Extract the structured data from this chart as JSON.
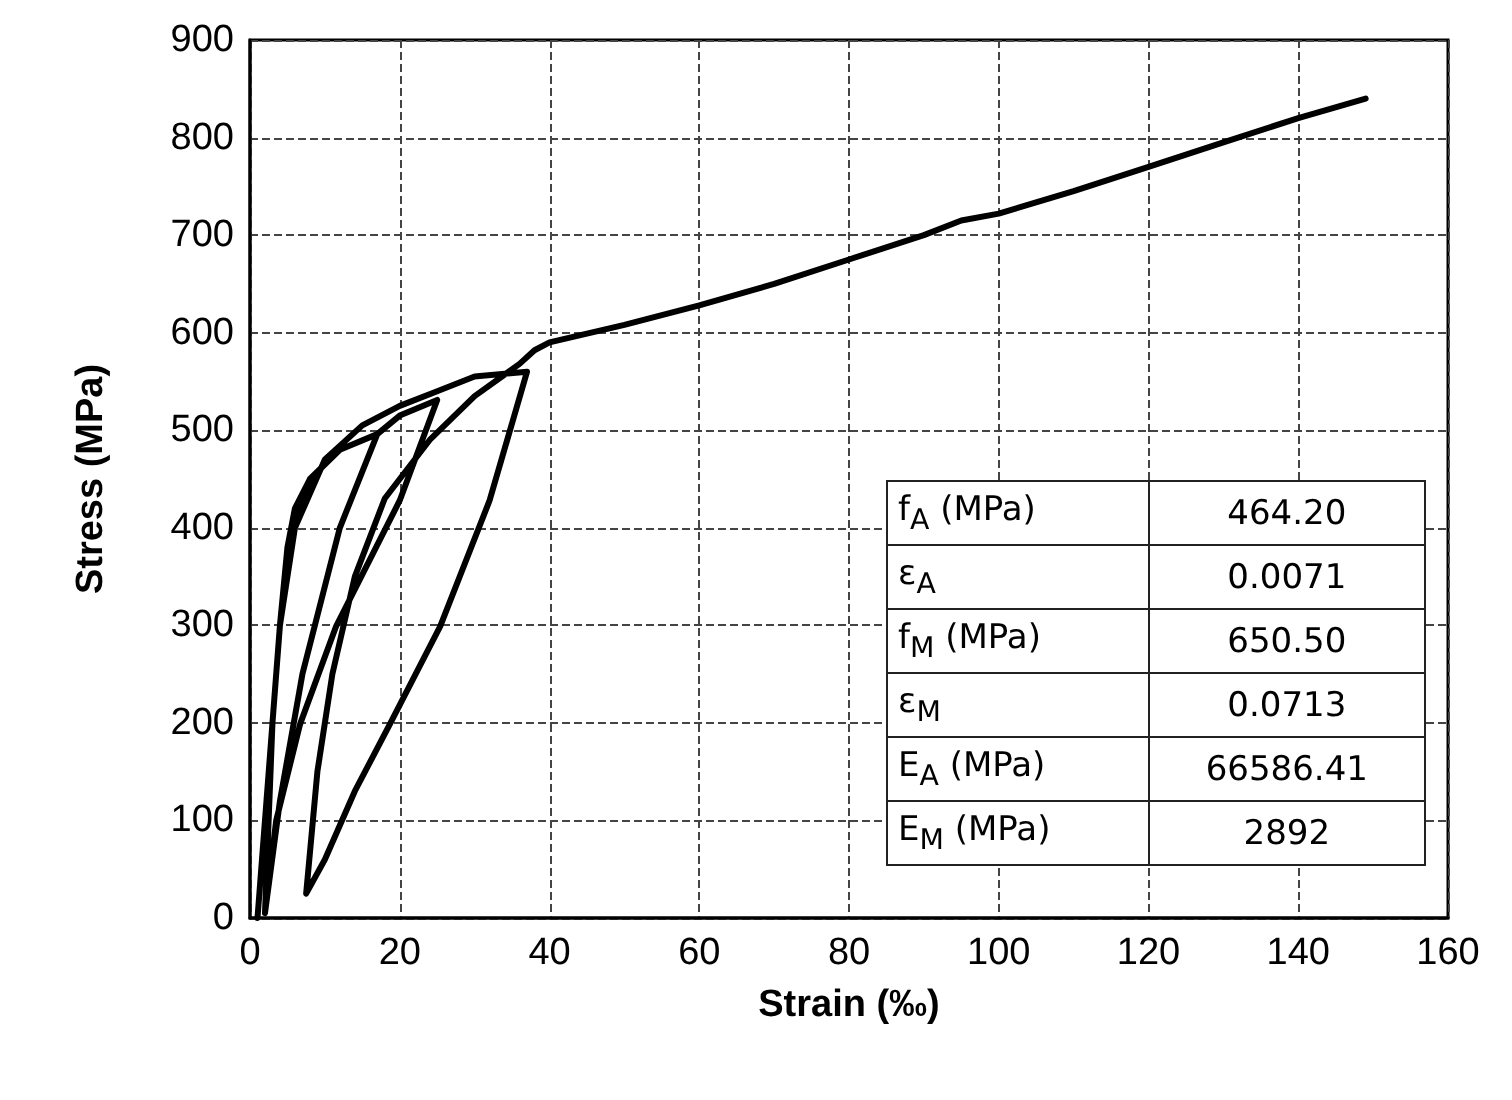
{
  "chart_data": {
    "type": "line",
    "xlabel": "Strain (‰)",
    "ylabel": "Stress (MPa)",
    "xlim": [
      0,
      160
    ],
    "xticks": [
      0,
      20,
      40,
      60,
      80,
      100,
      120,
      140,
      160
    ],
    "ylim": [
      0,
      900
    ],
    "yticks": [
      0,
      100,
      200,
      300,
      400,
      500,
      600,
      700,
      800,
      900
    ],
    "grid": true,
    "marker": "none",
    "line_style": "solid",
    "series": [
      {
        "color": "#000000",
        "x": [
          1,
          2,
          3,
          4,
          5,
          6,
          8,
          12,
          17,
          12,
          7,
          4,
          2,
          3,
          4,
          6,
          8,
          12,
          17,
          20,
          25,
          20,
          11.5,
          6.7,
          3.5,
          2,
          3,
          4,
          6,
          10,
          15,
          20,
          25,
          30,
          37,
          32,
          25.4,
          18.7,
          14,
          10,
          7.5,
          9,
          11,
          14,
          18,
          24,
          30,
          36,
          38,
          40,
          50,
          60,
          70,
          80,
          90,
          95,
          100,
          110,
          120,
          130,
          140,
          149
        ],
        "values": [
          0,
          100,
          200,
          300,
          380,
          420,
          450,
          480,
          496,
          400,
          250,
          120,
          5,
          200,
          300,
          400,
          450,
          480,
          496,
          515,
          531,
          428,
          299,
          199,
          100,
          5,
          200,
          300,
          400,
          470,
          505,
          525,
          540,
          555,
          560,
          428,
          299,
          199,
          130,
          60,
          25,
          150,
          250,
          350,
          430,
          490,
          535,
          568,
          582,
          590,
          608,
          628,
          650,
          675,
          700,
          715,
          722,
          745,
          770,
          795,
          820,
          840
        ]
      }
    ],
    "annotations": [
      "f$_{A}$ (MPa)",
      "464.20",
      "ε$_{A}$",
      "0.0071",
      "f$_{M}$ (MPa)",
      "650.50",
      "ε$_{M}$",
      "0.0713",
      "E$_{A}$ (MPa)",
      "66586.41",
      "E$_{M}$ (MPa)",
      "2892"
    ]
  }
}
